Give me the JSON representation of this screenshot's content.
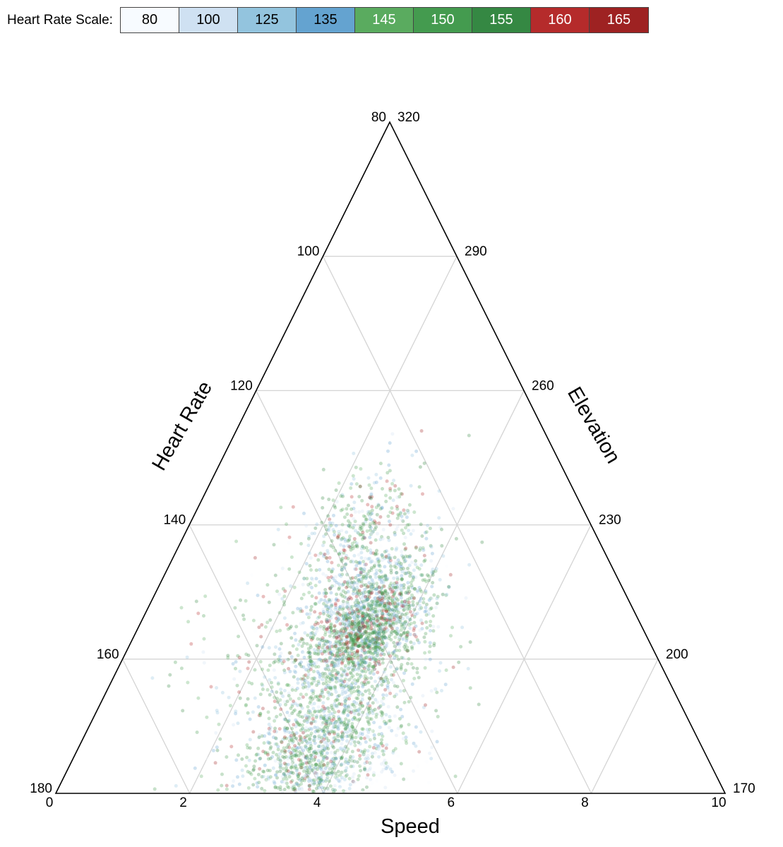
{
  "legend": {
    "title": "Heart Rate Scale:",
    "items": [
      {
        "label": "80",
        "color": "#f7fbff",
        "text_color": "#000000"
      },
      {
        "label": "100",
        "color": "#cfe1f2",
        "text_color": "#000000"
      },
      {
        "label": "125",
        "color": "#93c4de",
        "text_color": "#000000"
      },
      {
        "label": "135",
        "color": "#64a3d0",
        "text_color": "#000000"
      },
      {
        "label": "145",
        "color": "#5aab5f",
        "text_color": "#ffffff"
      },
      {
        "label": "150",
        "color": "#449b4f",
        "text_color": "#ffffff"
      },
      {
        "label": "155",
        "color": "#358843",
        "text_color": "#ffffff"
      },
      {
        "label": "160",
        "color": "#b52b2b",
        "text_color": "#ffffff"
      },
      {
        "label": "165",
        "color": "#9e2222",
        "text_color": "#ffffff"
      }
    ]
  },
  "chart_data": {
    "type": "ternary-scatter",
    "axes": {
      "bottom": {
        "label": "Speed",
        "min": 0,
        "max": 10,
        "ticks": [
          "0",
          "2",
          "4",
          "6",
          "8",
          "10"
        ]
      },
      "left": {
        "label": "Heart Rate",
        "min": 80,
        "max": 180,
        "ticks": [
          "80",
          "100",
          "120",
          "140",
          "160",
          "180"
        ]
      },
      "right": {
        "label": "Elevation",
        "min": 170,
        "max": 320,
        "ticks": [
          "170",
          "200",
          "230",
          "260",
          "290",
          "320"
        ]
      }
    },
    "grid": true,
    "point_opacity": 0.3,
    "clusters": [
      {
        "elevation": 246,
        "heart_rate": 126,
        "speed": 3.4,
        "spread": 0.045,
        "count": 380,
        "color_weights": [
          1,
          3,
          4,
          3,
          5,
          5,
          4,
          1,
          1
        ]
      },
      {
        "elevation": 228,
        "heart_rate": 137,
        "speed": 4.7,
        "spread": 0.05,
        "count": 1000,
        "color_weights": [
          1,
          3,
          5,
          6,
          5,
          5,
          5,
          1,
          1
        ]
      },
      {
        "elevation": 222,
        "heart_rate": 141,
        "speed": 5.0,
        "spread": 0.038,
        "count": 650,
        "color_weights": [
          0,
          1,
          2,
          3,
          6,
          7,
          7,
          2,
          1
        ]
      },
      {
        "elevation": 223,
        "heart_rate": 139,
        "speed": 4.4,
        "spread": 0.03,
        "count": 90,
        "color_weights": [
          0,
          0,
          1,
          1,
          1,
          1,
          2,
          6,
          5
        ]
      },
      {
        "elevation": 196,
        "heart_rate": 159,
        "speed": 5.3,
        "spread": 0.07,
        "count": 1100,
        "color_weights": [
          1,
          3,
          5,
          4,
          5,
          5,
          4,
          1,
          1
        ]
      },
      {
        "elevation": 183,
        "heart_rate": 170,
        "speed": 5.7,
        "spread": 0.04,
        "count": 450,
        "color_weights": [
          0,
          2,
          3,
          3,
          6,
          6,
          5,
          1,
          1
        ]
      },
      {
        "elevation": 178,
        "heart_rate": 174,
        "speed": 7.3,
        "spread": 0.06,
        "count": 260,
        "color_weights": [
          6,
          5,
          2,
          1,
          0,
          0,
          0,
          0,
          0
        ]
      },
      {
        "elevation": 213,
        "heart_rate": 153,
        "speed": 3.0,
        "spread": 0.085,
        "count": 220,
        "color_weights": [
          1,
          2,
          3,
          2,
          4,
          4,
          3,
          2,
          1
        ]
      }
    ]
  }
}
